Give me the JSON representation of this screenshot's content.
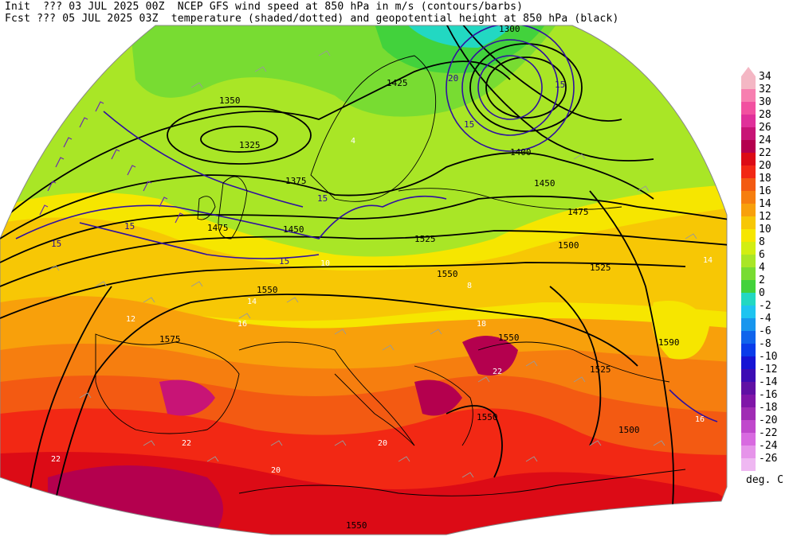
{
  "header": {
    "line1": "Init  ??? 03 JUL 2025 00Z  NCEP GFS wind speed at 850 hPa in m/s (contours/barbs)",
    "line2": "Fcst ??? 05 JUL 2025 03Z  temperature (shaded/dotted) and geopotential height at 850 hPa (black)"
  },
  "colorbar": {
    "unit": "deg. C",
    "levels": [
      {
        "label": "34",
        "color": "#f4b7c4"
      },
      {
        "label": "32",
        "color": "#f77fb0"
      },
      {
        "label": "30",
        "color": "#f250a0"
      },
      {
        "label": "28",
        "color": "#e0309a"
      },
      {
        "label": "26",
        "color": "#c81476"
      },
      {
        "label": "24",
        "color": "#b4004e"
      },
      {
        "label": "22",
        "color": "#dc0b16"
      },
      {
        "label": "20",
        "color": "#f22814"
      },
      {
        "label": "18",
        "color": "#f35a12"
      },
      {
        "label": "16",
        "color": "#f67e0f"
      },
      {
        "label": "14",
        "color": "#f8a00b"
      },
      {
        "label": "12",
        "color": "#f7c705"
      },
      {
        "label": "10",
        "color": "#f6e600"
      },
      {
        "label": "8",
        "color": "#d2ee12"
      },
      {
        "label": "6",
        "color": "#a9e626"
      },
      {
        "label": "4",
        "color": "#78dc32"
      },
      {
        "label": "2",
        "color": "#42d23c"
      },
      {
        "label": "0",
        "color": "#22d8c2"
      },
      {
        "label": "-2",
        "color": "#1ec4f0"
      },
      {
        "label": "-4",
        "color": "#1896ee"
      },
      {
        "label": "-6",
        "color": "#1064ec"
      },
      {
        "label": "-8",
        "color": "#0a3cea"
      },
      {
        "label": "-10",
        "color": "#1614d4"
      },
      {
        "label": "-12",
        "color": "#3c0cb4"
      },
      {
        "label": "-14",
        "color": "#6010a4"
      },
      {
        "label": "-16",
        "color": "#8016a8"
      },
      {
        "label": "-18",
        "color": "#a02cb4"
      },
      {
        "label": "-20",
        "color": "#c048cc"
      },
      {
        "label": "-22",
        "color": "#d86ae0"
      },
      {
        "label": "-24",
        "color": "#e694ea"
      },
      {
        "label": "-26",
        "color": "#efb8f2"
      }
    ]
  },
  "height_labels": [
    "1300",
    "1325",
    "1350",
    "1375",
    "1400",
    "1425",
    "1450",
    "1475",
    "1500",
    "1525",
    "1550",
    "1575",
    "1590"
  ],
  "wind_labels": [
    "15",
    "20"
  ],
  "temp_labels": [
    "4",
    "8",
    "10",
    "12",
    "14",
    "16",
    "18",
    "20",
    "22"
  ]
}
